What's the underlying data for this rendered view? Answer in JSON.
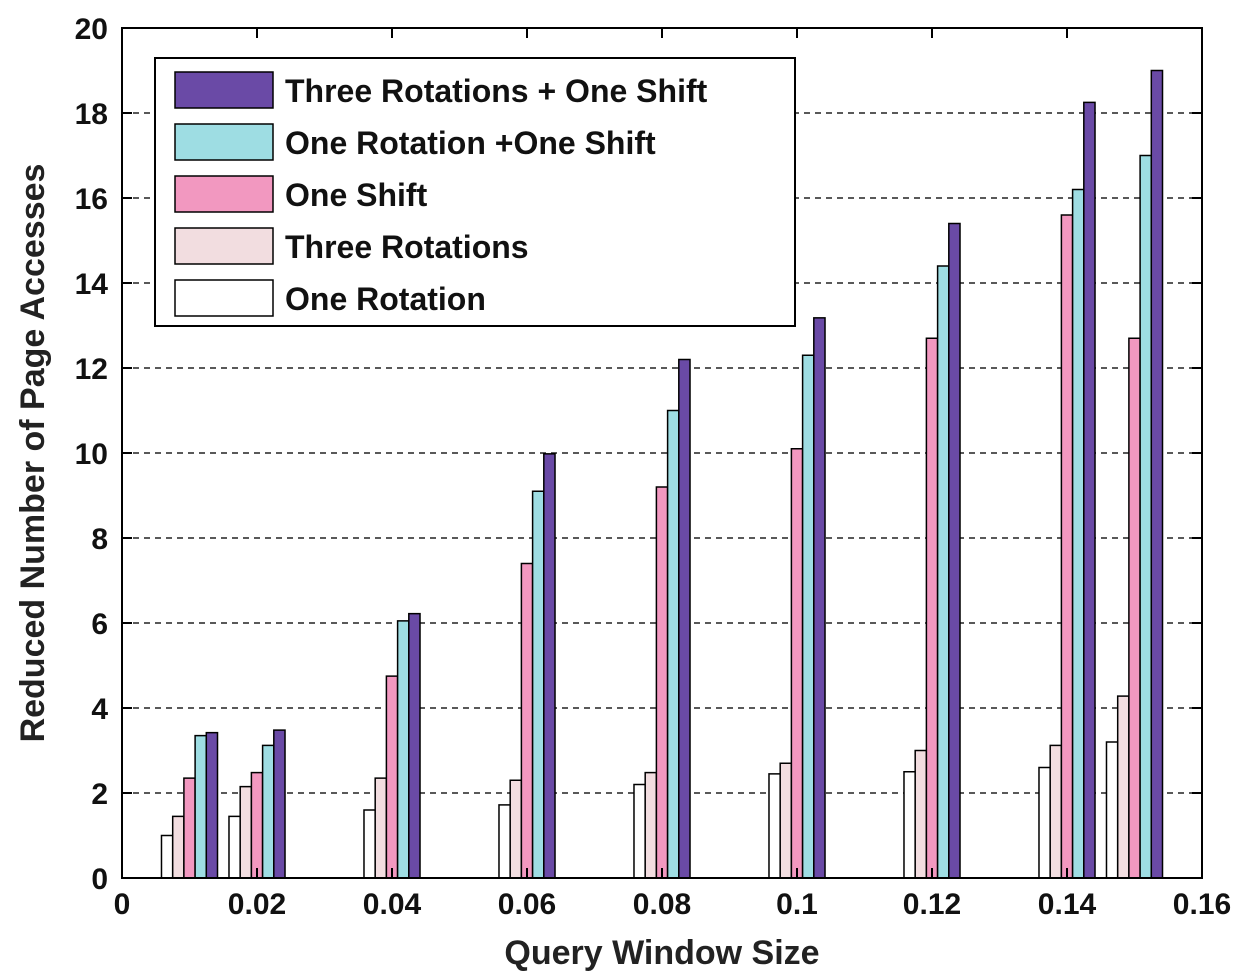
{
  "chart_data": {
    "type": "bar",
    "title": "",
    "xlabel": "Query Window Size",
    "ylabel": "Reduced Number of Page Accesses",
    "xlim": [
      0,
      0.16
    ],
    "ylim": [
      0,
      20
    ],
    "x_ticks": [
      "0",
      "0.02",
      "0.04",
      "0.06",
      "0.08",
      "0.1",
      "0.12",
      "0.14",
      "0.16"
    ],
    "y_ticks": [
      "0",
      "2",
      "4",
      "6",
      "8",
      "10",
      "12",
      "14",
      "16",
      "18",
      "20"
    ],
    "grid": "y-dashed",
    "legend_position": "top-left",
    "x": [
      0.01,
      0.02,
      0.04,
      0.06,
      0.08,
      0.1,
      0.12,
      0.14,
      0.15
    ],
    "series": [
      {
        "name": "One Rotation",
        "color": "#ffffff",
        "values": [
          1.0,
          1.45,
          1.6,
          1.72,
          2.2,
          2.45,
          2.5,
          2.6,
          3.2
        ]
      },
      {
        "name": "Three Rotations",
        "color": "#f2dde0",
        "values": [
          1.45,
          2.15,
          2.35,
          2.3,
          2.48,
          2.7,
          3.0,
          3.12,
          4.28
        ]
      },
      {
        "name": "One Shift",
        "color": "#f298c0",
        "values": [
          2.35,
          2.48,
          4.75,
          7.4,
          9.2,
          10.1,
          12.7,
          15.6,
          12.7
        ]
      },
      {
        "name": "One Rotation +One Shift",
        "color": "#9edde3",
        "values": [
          3.35,
          3.12,
          6.05,
          9.1,
          11.0,
          12.3,
          14.4,
          16.2,
          17.0
        ]
      },
      {
        "name": "Three Rotations + One Shift",
        "color": "#6a4aa6",
        "values": [
          3.42,
          3.48,
          6.22,
          9.98,
          12.2,
          13.18,
          15.4,
          18.25,
          19.0
        ]
      }
    ],
    "legend_order": [
      "Three Rotations + One Shift",
      "One Rotation +One Shift",
      "One Shift",
      "Three Rotations",
      "One Rotation"
    ]
  }
}
